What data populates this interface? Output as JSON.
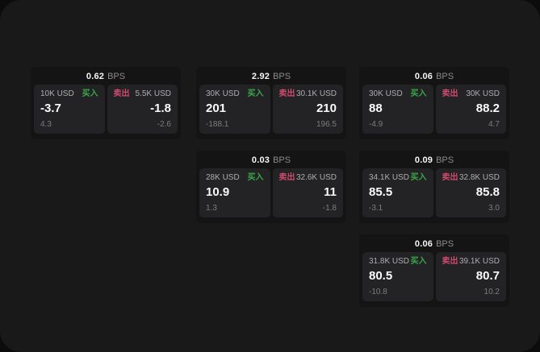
{
  "labels": {
    "bps_unit": "BPS",
    "buy": "买入",
    "sell": "卖出"
  },
  "colors": {
    "buy_green": "#3aa74a",
    "sell_red": "#d04a6e",
    "window_bg": "#19191a",
    "card_bg": "#141415",
    "panel_bg": "#232325"
  },
  "cards": [
    {
      "row": 1,
      "col": 1,
      "bps": "0.62",
      "buy": {
        "amount": "10K USD",
        "price": "-3.7",
        "change": "4.3"
      },
      "sell": {
        "amount": "5.5K USD",
        "price": "-1.8",
        "change": "-2.6"
      }
    },
    {
      "row": 1,
      "col": 2,
      "bps": "2.92",
      "buy": {
        "amount": "30K USD",
        "price": "201",
        "change": "-188.1"
      },
      "sell": {
        "amount": "30.1K USD",
        "price": "210",
        "change": "196.5"
      }
    },
    {
      "row": 1,
      "col": 3,
      "bps": "0.06",
      "buy": {
        "amount": "30K USD",
        "price": "88",
        "change": "-4.9"
      },
      "sell": {
        "amount": "30K USD",
        "price": "88.2",
        "change": "4.7"
      }
    },
    {
      "row": 2,
      "col": 2,
      "bps": "0.03",
      "buy": {
        "amount": "28K USD",
        "price": "10.9",
        "change": "1.3"
      },
      "sell": {
        "amount": "32.6K USD",
        "price": "11",
        "change": "-1.8"
      }
    },
    {
      "row": 2,
      "col": 3,
      "bps": "0.09",
      "buy": {
        "amount": "34.1K USD",
        "price": "85.5",
        "change": "-3.1"
      },
      "sell": {
        "amount": "32.8K USD",
        "price": "85.8",
        "change": "3.0"
      }
    },
    {
      "row": 3,
      "col": 3,
      "bps": "0.06",
      "buy": {
        "amount": "31.8K USD",
        "price": "80.5",
        "change": "-10.8"
      },
      "sell": {
        "amount": "39.1K USD",
        "price": "80.7",
        "change": "10.2"
      }
    }
  ]
}
